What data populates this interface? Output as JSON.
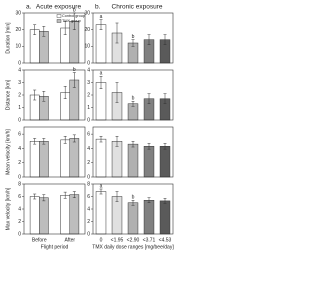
{
  "chart_data": [
    {
      "type": "bar",
      "panel_label": "a.",
      "title": "Acute exposure",
      "ylabel": "Duration [min]",
      "ylim": [
        0,
        30
      ],
      "yticks": [
        0,
        10,
        20,
        30
      ],
      "legend": "upper right",
      "series": [
        {
          "name": "Control group",
          "color": "#ffffff",
          "values": [
            20,
            21
          ],
          "errors": [
            3,
            4
          ],
          "annotations": [
            null,
            null
          ]
        },
        {
          "name": "TMX group",
          "color": "#bdbdbd",
          "values": [
            19,
            25
          ],
          "errors": [
            3,
            5
          ],
          "annotations": [
            null,
            "b"
          ]
        }
      ]
    },
    {
      "type": "bar",
      "panel_label": "b.",
      "title": "Chronic exposure",
      "ylim": [
        0,
        30
      ],
      "yticks": [
        0,
        10,
        20,
        30
      ],
      "values": [
        23,
        18,
        12,
        14,
        14
      ],
      "errors": [
        3,
        6,
        2,
        3,
        3
      ],
      "annotations": [
        "a",
        null,
        "b",
        null,
        null
      ],
      "colors": [
        "#ffffff",
        "#e0e0e0",
        "#b0b0b0",
        "#808080",
        "#5a5a5a"
      ]
    },
    {
      "type": "bar",
      "ylabel": "Distance [km]",
      "ylim": [
        0,
        4
      ],
      "yticks": [
        0,
        1,
        2,
        3,
        4
      ],
      "series": [
        {
          "color": "#ffffff",
          "values": [
            2.0,
            2.2
          ],
          "errors": [
            0.4,
            0.5
          ],
          "annotations": [
            null,
            null
          ]
        },
        {
          "color": "#bdbdbd",
          "values": [
            1.9,
            3.2
          ],
          "errors": [
            0.4,
            0.6
          ],
          "annotations": [
            null,
            "b"
          ]
        }
      ]
    },
    {
      "type": "bar",
      "ylim": [
        0,
        4
      ],
      "yticks": [
        0,
        1,
        2,
        3,
        4
      ],
      "values": [
        3.0,
        2.2,
        1.3,
        1.7,
        1.7
      ],
      "errors": [
        0.5,
        0.8,
        0.2,
        0.4,
        0.4
      ],
      "annotations": [
        "a",
        null,
        "b",
        null,
        null
      ],
      "colors": [
        "#ffffff",
        "#e0e0e0",
        "#b0b0b0",
        "#808080",
        "#5a5a5a"
      ]
    },
    {
      "type": "bar",
      "ylabel": "Mean velocity [km/h]",
      "ylim": [
        0,
        7
      ],
      "yticks": [
        0,
        2,
        4,
        6
      ],
      "series": [
        {
          "color": "#ffffff",
          "values": [
            5.0,
            5.2
          ],
          "errors": [
            0.4,
            0.5
          ],
          "annotations": [
            null,
            null
          ]
        },
        {
          "color": "#bdbdbd",
          "values": [
            5.0,
            5.4
          ],
          "errors": [
            0.4,
            0.5
          ],
          "annotations": [
            null,
            null
          ]
        }
      ]
    },
    {
      "type": "bar",
      "ylim": [
        0,
        7
      ],
      "yticks": [
        0,
        2,
        4,
        6
      ],
      "values": [
        5.3,
        5.0,
        4.6,
        4.3,
        4.3
      ],
      "errors": [
        0.4,
        0.7,
        0.4,
        0.4,
        0.4
      ],
      "annotations": [
        null,
        null,
        null,
        null,
        null
      ],
      "colors": [
        "#ffffff",
        "#e0e0e0",
        "#b0b0b0",
        "#808080",
        "#5a5a5a"
      ]
    },
    {
      "type": "bar",
      "ylabel": "Max velocity [km/h]",
      "ylim": [
        0,
        8
      ],
      "yticks": [
        0,
        2,
        4,
        6,
        8
      ],
      "xlabel": "Flight period",
      "categories": [
        "Before",
        "After"
      ],
      "series": [
        {
          "color": "#ffffff",
          "values": [
            6.0,
            6.2
          ],
          "errors": [
            0.4,
            0.5
          ],
          "annotations": [
            null,
            null
          ]
        },
        {
          "color": "#bdbdbd",
          "values": [
            5.8,
            6.3
          ],
          "errors": [
            0.5,
            0.5
          ],
          "annotations": [
            null,
            null
          ]
        }
      ]
    },
    {
      "type": "bar",
      "ylim": [
        0,
        8
      ],
      "yticks": [
        0,
        2,
        4,
        6,
        8
      ],
      "xlabel": "TMX daily dose ranges [mg/bee/day]",
      "categories": [
        "0",
        "<1.95",
        "<2.90",
        "<3.71",
        "<4.53"
      ],
      "values": [
        6.8,
        6.0,
        5.0,
        5.4,
        5.3
      ],
      "errors": [
        0.4,
        0.8,
        0.4,
        0.4,
        0.4
      ],
      "annotations": [
        "a",
        null,
        "b",
        null,
        null
      ],
      "colors": [
        "#ffffff",
        "#e0e0e0",
        "#b0b0b0",
        "#808080",
        "#5a5a5a"
      ]
    }
  ]
}
